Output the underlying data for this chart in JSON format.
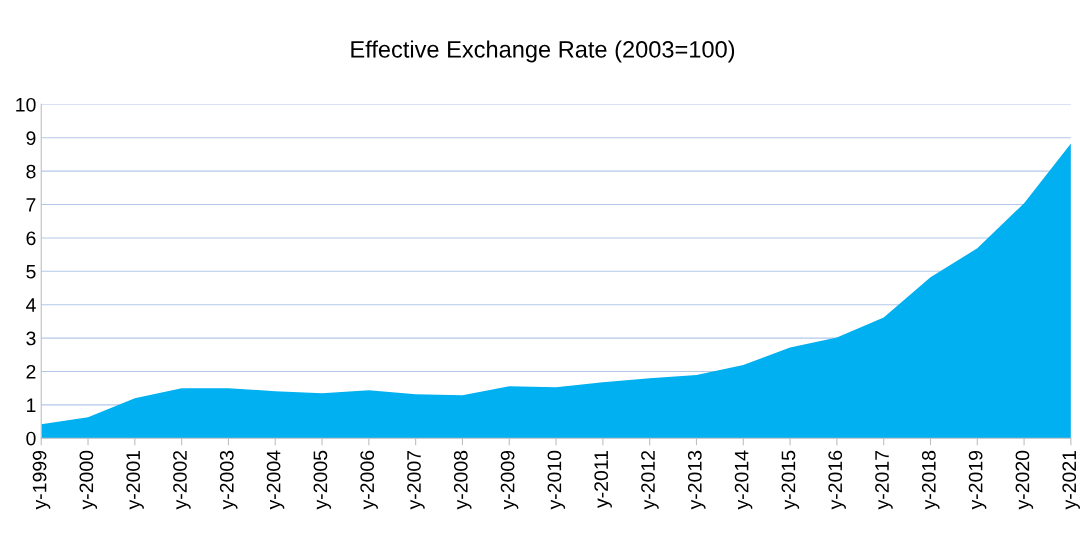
{
  "chart_data": {
    "type": "area",
    "title": "Effective Exchange Rate (2003=100)",
    "categories": [
      "y-1999",
      "y-2000",
      "y-2001",
      "y-2002",
      "y-2003",
      "y-2004",
      "y-2005",
      "y-2006",
      "y-2007",
      "y-2008",
      "y-2009",
      "y-2010",
      "y-2011",
      "y-2012",
      "y-2013",
      "y-2014",
      "y-2015",
      "y-2016",
      "y-2017",
      "y-2018",
      "y-2019",
      "y-2020",
      "y-2021"
    ],
    "series": [
      {
        "color": "#00b0f0",
        "values": [
          0.42,
          0.63,
          1.2,
          1.5,
          1.5,
          1.41,
          1.35,
          1.44,
          1.32,
          1.29,
          1.56,
          1.53,
          1.68,
          1.8,
          1.89,
          2.19,
          2.72,
          3.02,
          3.62,
          4.82,
          5.69,
          7.04,
          8.83
        ]
      }
    ],
    "ylim": [
      0,
      10
    ],
    "yticks": [
      0,
      1,
      2,
      3,
      4,
      5,
      6,
      7,
      8,
      9,
      10
    ],
    "grid": "y",
    "legend": false
  }
}
